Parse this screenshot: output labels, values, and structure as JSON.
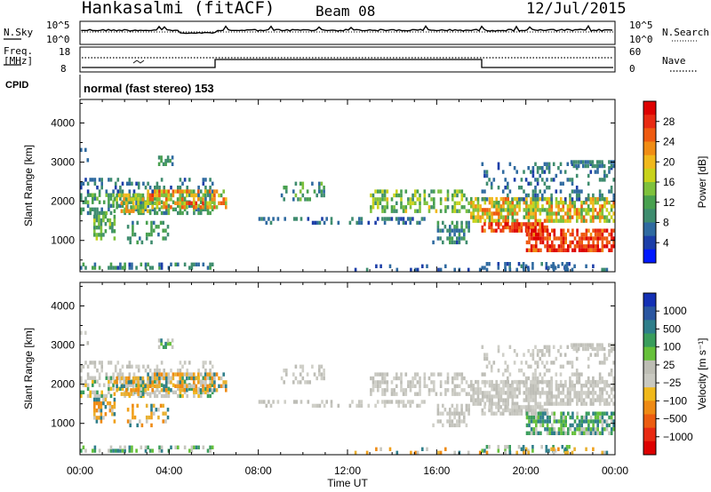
{
  "header": {
    "station": "Hankasalmi (fitACF)",
    "beam": "Beam 08",
    "date": "12/Jul/2015"
  },
  "noise_panel": {
    "left_label": "N.Sky",
    "right_label": "N.Search",
    "left_ticks": [
      "10^5",
      "10^0"
    ],
    "right_ticks": [
      "10^5",
      "10^0"
    ]
  },
  "freq_panel": {
    "left_label_1": "Freq.",
    "left_label_2": "[MHz]",
    "left_ticks": [
      "18",
      "8"
    ],
    "right_label": "Nave",
    "right_ticks": [
      "60",
      "0"
    ]
  },
  "cpid": {
    "label": "CPID",
    "mode": "normal (fast stereo) 153"
  },
  "chart_data": [
    {
      "type": "heatmap",
      "title": "Power",
      "ylabel": "Slant Range [km]",
      "ylim": [
        200,
        4600
      ],
      "yticks": [
        "4000",
        "3000",
        "2000",
        "1000"
      ],
      "x": [
        "00:00",
        "04:00",
        "08:00",
        "12:00",
        "16:00",
        "20:00",
        "00:00"
      ],
      "colorbar": {
        "label": "Power [dB]",
        "ticks": [
          "28",
          "24",
          "20",
          "16",
          "12",
          "8",
          "4"
        ],
        "colors": [
          "#0018ff",
          "#1c3ea8",
          "#2f6aa0",
          "#3e8c6e",
          "#48a04f",
          "#7ec13c",
          "#c8d21a",
          "#f0b81b",
          "#f08c14",
          "#ee5a10",
          "#e82a12",
          "#dd0000"
        ]
      }
    },
    {
      "type": "heatmap",
      "title": "Velocity",
      "ylabel": "Slant Range [km]",
      "ylim": [
        200,
        4600
      ],
      "yticks": [
        "4000",
        "3000",
        "2000",
        "1000"
      ],
      "x": [
        "00:00",
        "04:00",
        "08:00",
        "12:00",
        "16:00",
        "20:00",
        "00:00"
      ],
      "xlabel": "Time UT",
      "colorbar": {
        "label": "Velocity [m s⁻¹]",
        "ticks": [
          "1000",
          "500",
          "100",
          "25",
          "−25",
          "−100",
          "−500",
          "−1000"
        ],
        "colors": [
          "#1430b4",
          "#2a56a0",
          "#2f7e8a",
          "#3a9d5c",
          "#66c03a",
          "#bdbdb4",
          "#c8c8c0",
          "#f0b81b",
          "#ee8a14",
          "#ec5c10",
          "#e82a12",
          "#dd0000"
        ]
      }
    }
  ],
  "colors": {
    "velocity_ground": "#c6c6bf",
    "power_low": "#1a3fa0",
    "power_high": "#dd1100"
  }
}
